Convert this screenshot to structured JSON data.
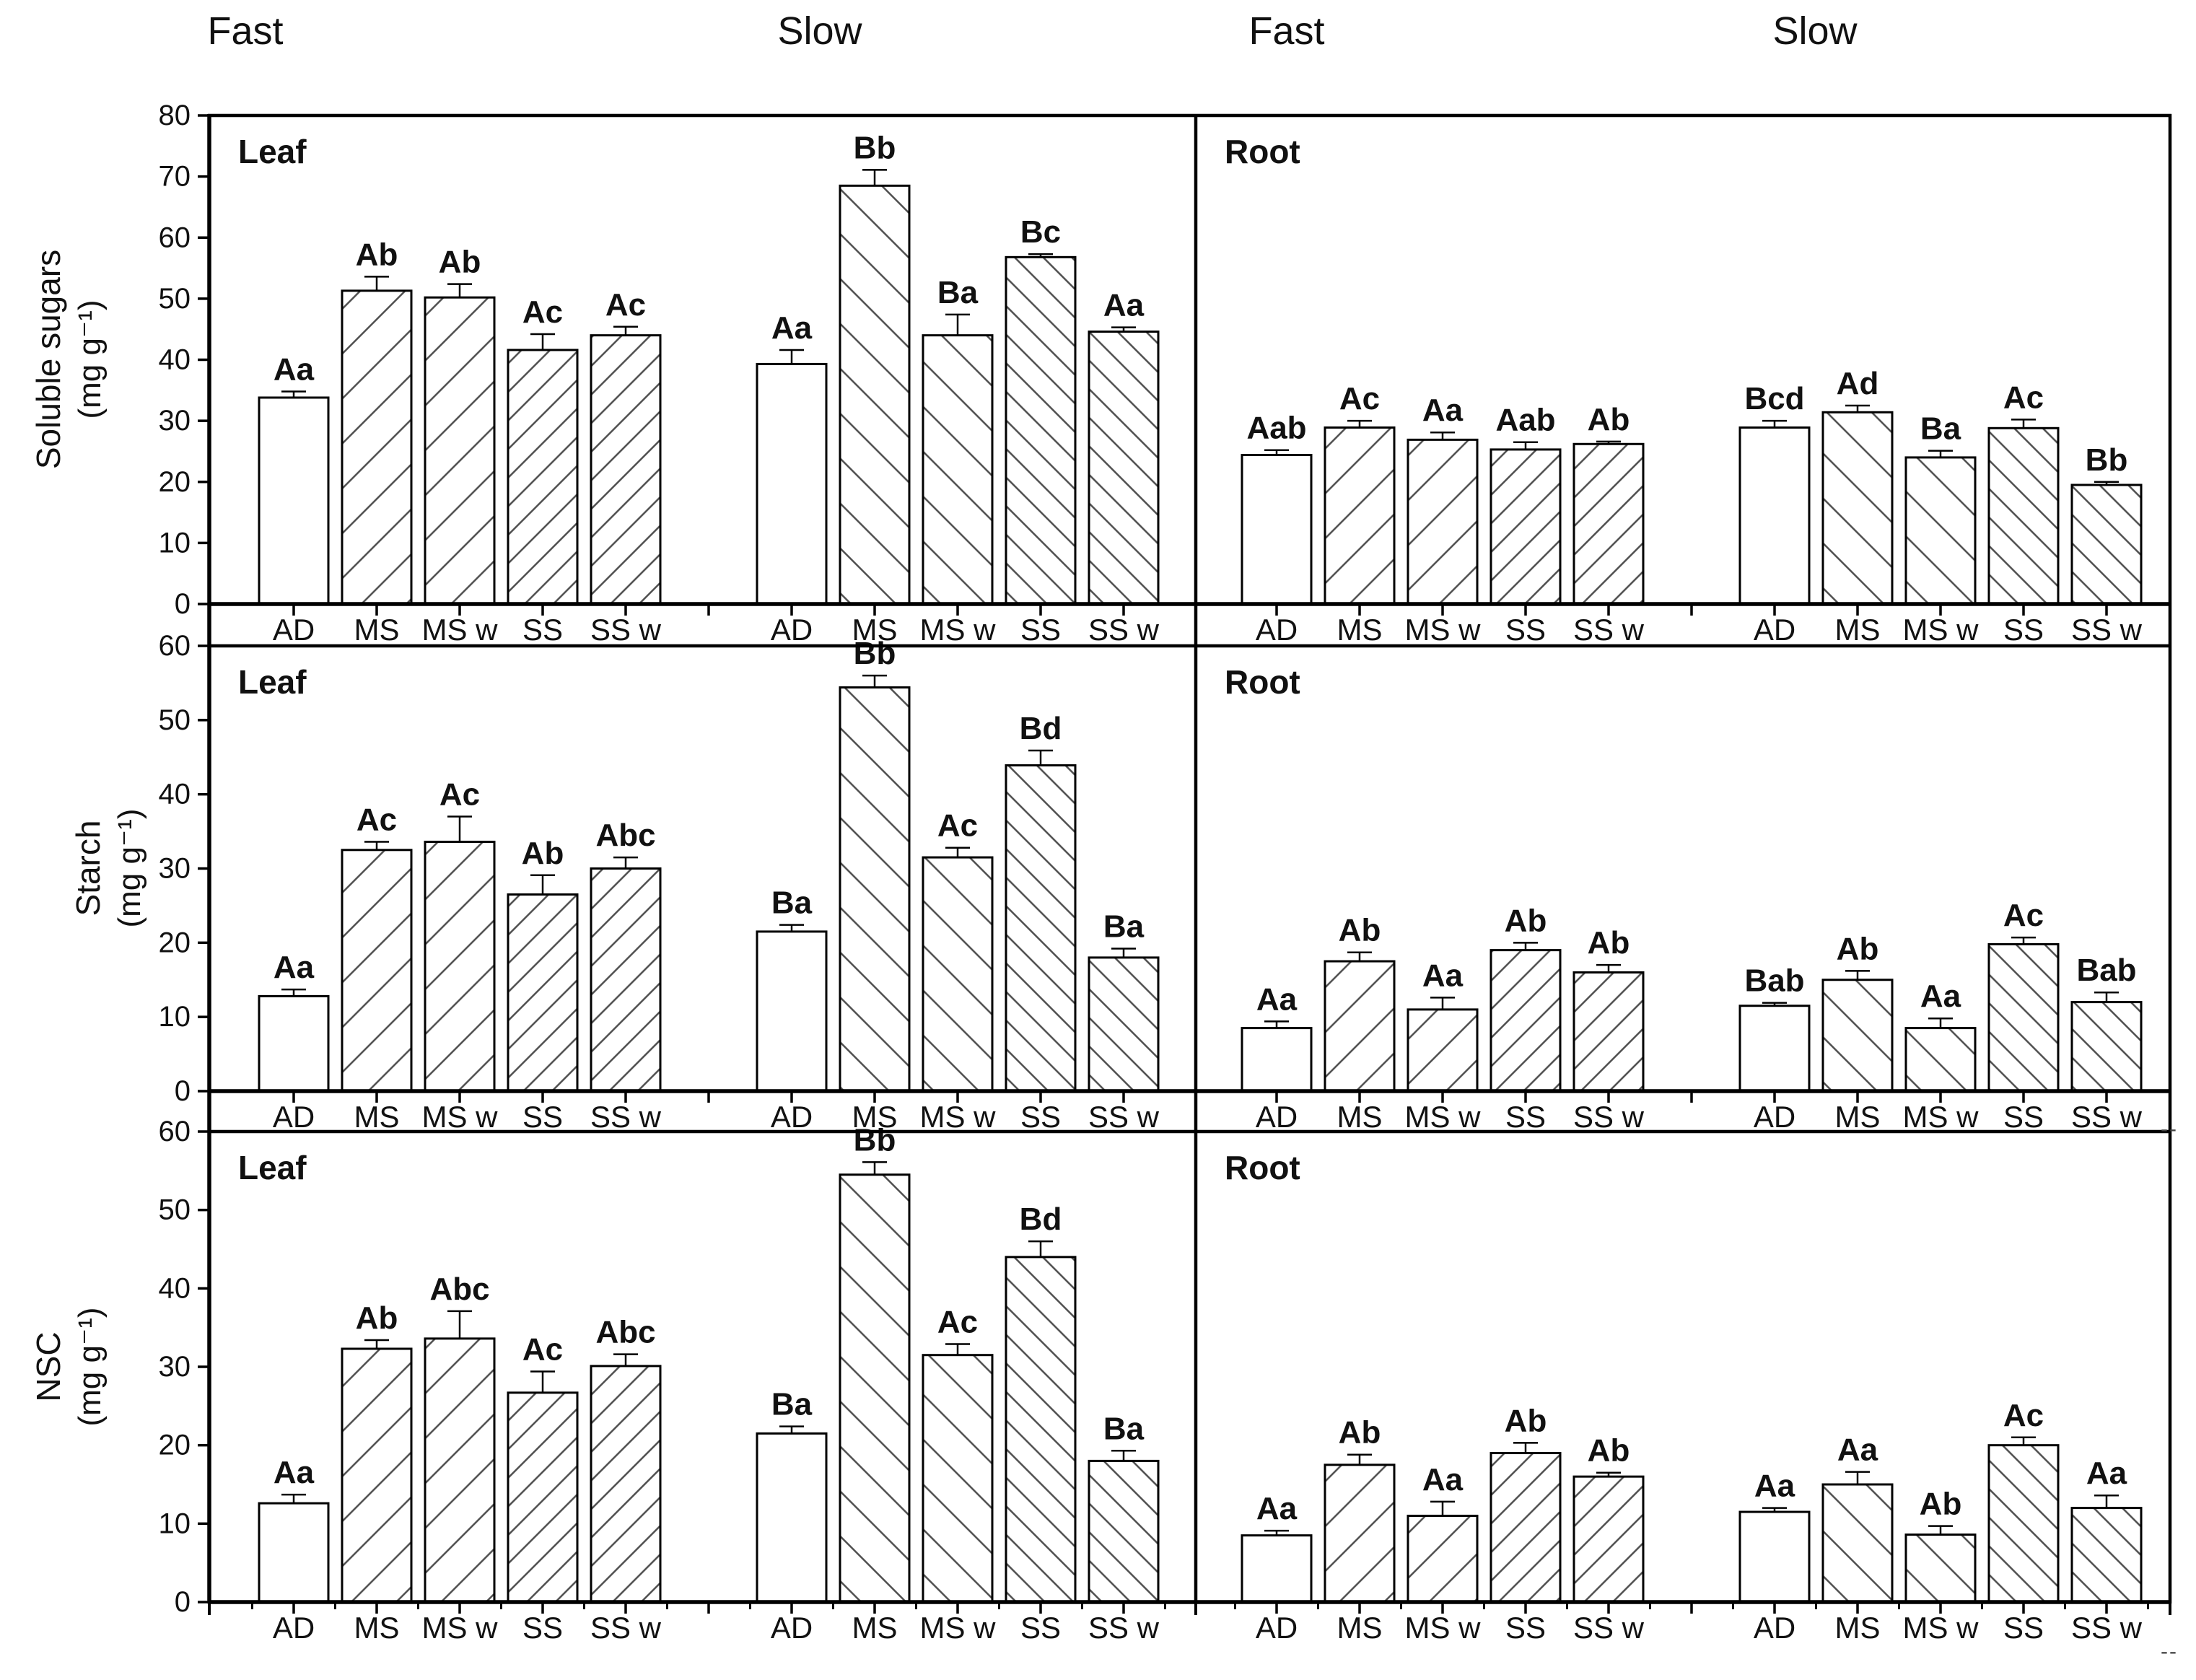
{
  "colors": {
    "background": "#ffffff",
    "ink": "#000000",
    "hatch": "#4d4d4d"
  },
  "group_headers": [
    {
      "label": "Fast"
    },
    {
      "label": "Slow"
    },
    {
      "label": "Fast"
    },
    {
      "label": "Slow"
    }
  ],
  "categories": [
    "AD",
    "MS",
    "MS w",
    "SS",
    "SS w"
  ],
  "stray_marks": [
    {
      "text": "--"
    },
    {
      "text": "--"
    }
  ],
  "chart_data": [
    {
      "type": "bar",
      "ylabel": "Soluble sugars",
      "yunits": "(mg g⁻¹)",
      "ylim": [
        0,
        80
      ],
      "ytick_step": 10,
      "grid": false,
      "legend": "none",
      "panels": [
        {
          "title": "Leaf",
          "groups": [
            {
              "name": "Fast",
              "hatch_direction": "forward",
              "bars": [
                {
                  "category": "AD",
                  "value": 33.8,
                  "error": 1.0,
                  "sig_label": "Aa",
                  "hatch": "none"
                },
                {
                  "category": "MS",
                  "value": 51.3,
                  "error": 2.3,
                  "sig_label": "Ab",
                  "hatch": "wide"
                },
                {
                  "category": "MS w",
                  "value": 50.2,
                  "error": 2.2,
                  "sig_label": "Ab",
                  "hatch": "wide"
                },
                {
                  "category": "SS",
                  "value": 41.6,
                  "error": 2.6,
                  "sig_label": "Ac",
                  "hatch": "dense"
                },
                {
                  "category": "SS w",
                  "value": 44.0,
                  "error": 1.4,
                  "sig_label": "Ac",
                  "hatch": "dense"
                }
              ]
            },
            {
              "name": "Slow",
              "hatch_direction": "backward",
              "bars": [
                {
                  "category": "AD",
                  "value": 39.3,
                  "error": 2.3,
                  "sig_label": "Aa",
                  "hatch": "none"
                },
                {
                  "category": "MS",
                  "value": 68.5,
                  "error": 2.6,
                  "sig_label": "Bb",
                  "hatch": "wide"
                },
                {
                  "category": "MS w",
                  "value": 44.0,
                  "error": 3.4,
                  "sig_label": "Ba",
                  "hatch": "wide"
                },
                {
                  "category": "SS",
                  "value": 56.8,
                  "error": 0.5,
                  "sig_label": "Bc",
                  "hatch": "dense"
                },
                {
                  "category": "SS w",
                  "value": 44.6,
                  "error": 0.7,
                  "sig_label": "Aa",
                  "hatch": "dense"
                }
              ]
            }
          ]
        },
        {
          "title": "Root",
          "groups": [
            {
              "name": "Fast",
              "hatch_direction": "forward",
              "bars": [
                {
                  "category": "AD",
                  "value": 24.4,
                  "error": 0.8,
                  "sig_label": "Aab",
                  "hatch": "none"
                },
                {
                  "category": "MS",
                  "value": 28.9,
                  "error": 1.1,
                  "sig_label": "Ac",
                  "hatch": "wide"
                },
                {
                  "category": "MS w",
                  "value": 26.9,
                  "error": 1.2,
                  "sig_label": "Aa",
                  "hatch": "wide"
                },
                {
                  "category": "SS",
                  "value": 25.3,
                  "error": 1.2,
                  "sig_label": "Aab",
                  "hatch": "dense"
                },
                {
                  "category": "SS w",
                  "value": 26.2,
                  "error": 0.4,
                  "sig_label": "Ab",
                  "hatch": "dense"
                }
              ]
            },
            {
              "name": "Slow",
              "hatch_direction": "backward",
              "bars": [
                {
                  "category": "AD",
                  "value": 28.9,
                  "error": 1.1,
                  "sig_label": "Bcd",
                  "hatch": "none"
                },
                {
                  "category": "MS",
                  "value": 31.4,
                  "error": 1.1,
                  "sig_label": "Ad",
                  "hatch": "wide"
                },
                {
                  "category": "MS w",
                  "value": 24.0,
                  "error": 1.1,
                  "sig_label": "Ba",
                  "hatch": "wide"
                },
                {
                  "category": "SS",
                  "value": 28.8,
                  "error": 1.4,
                  "sig_label": "Ac",
                  "hatch": "dense"
                },
                {
                  "category": "SS w",
                  "value": 19.5,
                  "error": 0.5,
                  "sig_label": "Bb",
                  "hatch": "dense"
                }
              ]
            }
          ]
        }
      ]
    },
    {
      "type": "bar",
      "ylabel": "Starch",
      "yunits": "(mg g⁻¹)",
      "ylim": [
        0,
        60
      ],
      "ytick_step": 10,
      "grid": false,
      "legend": "none",
      "panels": [
        {
          "title": "Leaf",
          "groups": [
            {
              "name": "Fast",
              "hatch_direction": "forward",
              "bars": [
                {
                  "category": "AD",
                  "value": 12.8,
                  "error": 0.9,
                  "sig_label": "Aa",
                  "hatch": "none"
                },
                {
                  "category": "MS",
                  "value": 32.5,
                  "error": 1.1,
                  "sig_label": "Ac",
                  "hatch": "wide"
                },
                {
                  "category": "MS w",
                  "value": 33.6,
                  "error": 3.4,
                  "sig_label": "Ac",
                  "hatch": "wide"
                },
                {
                  "category": "SS",
                  "value": 26.5,
                  "error": 2.6,
                  "sig_label": "Ab",
                  "hatch": "dense"
                },
                {
                  "category": "SS w",
                  "value": 30.0,
                  "error": 1.5,
                  "sig_label": "Abc",
                  "hatch": "dense"
                }
              ]
            },
            {
              "name": "Slow",
              "hatch_direction": "backward",
              "bars": [
                {
                  "category": "AD",
                  "value": 21.5,
                  "error": 0.9,
                  "sig_label": "Ba",
                  "hatch": "none"
                },
                {
                  "category": "MS",
                  "value": 54.4,
                  "error": 1.6,
                  "sig_label": "Bb",
                  "hatch": "wide"
                },
                {
                  "category": "MS w",
                  "value": 31.5,
                  "error": 1.3,
                  "sig_label": "Ac",
                  "hatch": "wide"
                },
                {
                  "category": "SS",
                  "value": 43.9,
                  "error": 2.0,
                  "sig_label": "Bd",
                  "hatch": "dense"
                },
                {
                  "category": "SS w",
                  "value": 18.0,
                  "error": 1.2,
                  "sig_label": "Ba",
                  "hatch": "dense"
                }
              ]
            }
          ]
        },
        {
          "title": "Root",
          "groups": [
            {
              "name": "Fast",
              "hatch_direction": "forward",
              "bars": [
                {
                  "category": "AD",
                  "value": 8.5,
                  "error": 0.9,
                  "sig_label": "Aa",
                  "hatch": "none"
                },
                {
                  "category": "MS",
                  "value": 17.5,
                  "error": 1.2,
                  "sig_label": "Ab",
                  "hatch": "wide"
                },
                {
                  "category": "MS w",
                  "value": 11.0,
                  "error": 1.6,
                  "sig_label": "Aa",
                  "hatch": "wide"
                },
                {
                  "category": "SS",
                  "value": 19.0,
                  "error": 1.0,
                  "sig_label": "Ab",
                  "hatch": "dense"
                },
                {
                  "category": "SS w",
                  "value": 16.0,
                  "error": 1.0,
                  "sig_label": "Ab",
                  "hatch": "dense"
                }
              ]
            },
            {
              "name": "Slow",
              "hatch_direction": "backward",
              "bars": [
                {
                  "category": "AD",
                  "value": 11.5,
                  "error": 0.4,
                  "sig_label": "Bab",
                  "hatch": "none"
                },
                {
                  "category": "MS",
                  "value": 15.0,
                  "error": 1.2,
                  "sig_label": "Ab",
                  "hatch": "wide"
                },
                {
                  "category": "MS w",
                  "value": 8.5,
                  "error": 1.3,
                  "sig_label": "Aa",
                  "hatch": "wide"
                },
                {
                  "category": "SS",
                  "value": 19.8,
                  "error": 0.9,
                  "sig_label": "Ac",
                  "hatch": "dense"
                },
                {
                  "category": "SS w",
                  "value": 12.0,
                  "error": 1.3,
                  "sig_label": "Bab",
                  "hatch": "dense"
                }
              ]
            }
          ]
        }
      ]
    },
    {
      "type": "bar",
      "ylabel": "NSC",
      "yunits": "(mg g⁻¹)",
      "ylim": [
        0,
        60
      ],
      "ytick_step": 10,
      "grid": false,
      "legend": "none",
      "panels": [
        {
          "title": "Leaf",
          "groups": [
            {
              "name": "Fast",
              "hatch_direction": "forward",
              "bars": [
                {
                  "category": "AD",
                  "value": 12.6,
                  "error": 1.1,
                  "sig_label": "Aa",
                  "hatch": "none"
                },
                {
                  "category": "MS",
                  "value": 32.3,
                  "error": 1.1,
                  "sig_label": "Ab",
                  "hatch": "wide"
                },
                {
                  "category": "MS w",
                  "value": 33.6,
                  "error": 3.5,
                  "sig_label": "Abc",
                  "hatch": "wide"
                },
                {
                  "category": "SS",
                  "value": 26.7,
                  "error": 2.7,
                  "sig_label": "Ac",
                  "hatch": "dense"
                },
                {
                  "category": "SS w",
                  "value": 30.1,
                  "error": 1.5,
                  "sig_label": "Abc",
                  "hatch": "dense"
                }
              ]
            },
            {
              "name": "Slow",
              "hatch_direction": "backward",
              "bars": [
                {
                  "category": "AD",
                  "value": 21.5,
                  "error": 0.9,
                  "sig_label": "Ba",
                  "hatch": "none"
                },
                {
                  "category": "MS",
                  "value": 54.5,
                  "error": 1.6,
                  "sig_label": "Bb",
                  "hatch": "wide"
                },
                {
                  "category": "MS w",
                  "value": 31.5,
                  "error": 1.4,
                  "sig_label": "Ac",
                  "hatch": "wide"
                },
                {
                  "category": "SS",
                  "value": 44.0,
                  "error": 2.0,
                  "sig_label": "Bd",
                  "hatch": "dense"
                },
                {
                  "category": "SS w",
                  "value": 18.0,
                  "error": 1.3,
                  "sig_label": "Ba",
                  "hatch": "dense"
                }
              ]
            }
          ]
        },
        {
          "title": "Root",
          "groups": [
            {
              "name": "Fast",
              "hatch_direction": "forward",
              "bars": [
                {
                  "category": "AD",
                  "value": 8.5,
                  "error": 0.6,
                  "sig_label": "Aa",
                  "hatch": "none"
                },
                {
                  "category": "MS",
                  "value": 17.5,
                  "error": 1.3,
                  "sig_label": "Ab",
                  "hatch": "wide"
                },
                {
                  "category": "MS w",
                  "value": 11.0,
                  "error": 1.8,
                  "sig_label": "Aa",
                  "hatch": "wide"
                },
                {
                  "category": "SS",
                  "value": 19.0,
                  "error": 1.3,
                  "sig_label": "Ab",
                  "hatch": "dense"
                },
                {
                  "category": "SS w",
                  "value": 16.0,
                  "error": 0.5,
                  "sig_label": "Ab",
                  "hatch": "dense"
                }
              ]
            },
            {
              "name": "Slow",
              "hatch_direction": "backward",
              "bars": [
                {
                  "category": "AD",
                  "value": 11.5,
                  "error": 0.5,
                  "sig_label": "Aa",
                  "hatch": "none"
                },
                {
                  "category": "MS",
                  "value": 15.0,
                  "error": 1.6,
                  "sig_label": "Aa",
                  "hatch": "wide"
                },
                {
                  "category": "MS w",
                  "value": 8.6,
                  "error": 1.1,
                  "sig_label": "Ab",
                  "hatch": "wide"
                },
                {
                  "category": "SS",
                  "value": 20.0,
                  "error": 1.0,
                  "sig_label": "Ac",
                  "hatch": "dense"
                },
                {
                  "category": "SS w",
                  "value": 12.0,
                  "error": 1.6,
                  "sig_label": "Aa",
                  "hatch": "dense"
                }
              ]
            }
          ]
        }
      ]
    }
  ]
}
